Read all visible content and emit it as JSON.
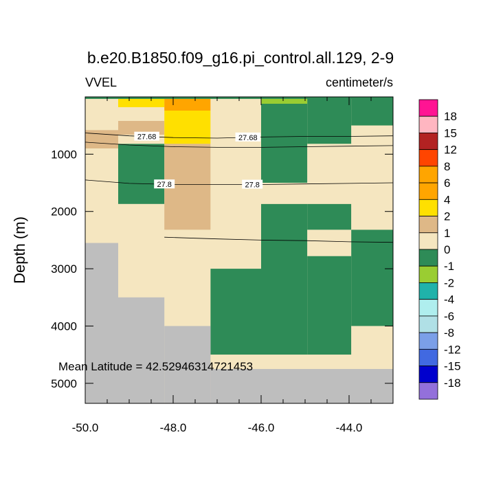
{
  "chart_data": {
    "type": "heatmap",
    "title": "b.e20.B1850.f09_g16.pi_control.all.129, 2-9",
    "variable_label": "VVEL",
    "units_label": "centimeter/s",
    "ylabel": "Depth (m)",
    "xlabel": "",
    "annotation": "Mean Latitude = 42.52946314721453",
    "xlim": [
      -50.0,
      -43.0
    ],
    "ylim": [
      5350,
      0
    ],
    "x_ticks": [
      -50.0,
      -48.0,
      -46.0,
      -44.0
    ],
    "x_tick_labels": [
      "-50.0",
      "-48.0",
      "-46.0",
      "-44.0"
    ],
    "y_ticks": [
      1000,
      2000,
      3000,
      4000,
      5000
    ],
    "y_tick_labels": [
      "1000",
      "2000",
      "3000",
      "4000",
      "5000"
    ],
    "land_color": "#bebebe",
    "colorbar": {
      "labels": [
        "18",
        "15",
        "12",
        "8",
        "6",
        "4",
        "2",
        "1",
        "0",
        "-1",
        "-2",
        "-4",
        "-6",
        "-8",
        "-12",
        "-15",
        "-18"
      ],
      "colors": [
        "#ff1493",
        "#ffb6c1",
        "#b22222",
        "#ff4500",
        "#ffa500",
        "#ffa500",
        "#ffe000",
        "#deb887",
        "#f5e6c0",
        "#2e8b57",
        "#9acd32",
        "#20b2aa",
        "#afeeee",
        "#b0e0e6",
        "#7b9fe8",
        "#4169e1",
        "#0000cd",
        "#9370db"
      ]
    },
    "cells": [
      {
        "x": [
          -50.0,
          -49.25
        ],
        "y": [
          0,
          580
        ],
        "category": "0"
      },
      {
        "x": [
          -50.0,
          -49.25
        ],
        "y": [
          580,
          900
        ],
        "category": "1"
      },
      {
        "x": [
          -50.0,
          -49.25
        ],
        "y": [
          900,
          2550
        ],
        "category": "0"
      },
      {
        "x": [
          -49.25,
          -48.2
        ],
        "y": [
          0,
          180
        ],
        "category": "2"
      },
      {
        "x": [
          -49.25,
          -48.2
        ],
        "y": [
          180,
          420
        ],
        "category": "0"
      },
      {
        "x": [
          -49.25,
          -48.2
        ],
        "y": [
          420,
          660
        ],
        "category": "1"
      },
      {
        "x": [
          -49.25,
          -48.2
        ],
        "y": [
          660,
          820
        ],
        "category": "0"
      },
      {
        "x": [
          -49.25,
          -48.2
        ],
        "y": [
          820,
          1870
        ],
        "category": "-1"
      },
      {
        "x": [
          -49.25,
          -48.2
        ],
        "y": [
          1870,
          3500
        ],
        "category": "0"
      },
      {
        "x": [
          -48.2,
          -47.15
        ],
        "y": [
          0,
          240
        ],
        "category": "4"
      },
      {
        "x": [
          -48.2,
          -47.15
        ],
        "y": [
          240,
          820
        ],
        "category": "2"
      },
      {
        "x": [
          -48.2,
          -47.15
        ],
        "y": [
          820,
          2320
        ],
        "category": "1"
      },
      {
        "x": [
          -48.2,
          -47.15
        ],
        "y": [
          2320,
          4000
        ],
        "category": "0"
      },
      {
        "x": [
          -47.15,
          -46.0
        ],
        "y": [
          0,
          3000
        ],
        "category": "0"
      },
      {
        "x": [
          -47.15,
          -46.0
        ],
        "y": [
          3000,
          4500
        ],
        "category": "-1"
      },
      {
        "x": [
          -47.15,
          -46.0
        ],
        "y": [
          4500,
          4750
        ],
        "category": "0"
      },
      {
        "x": [
          -46.0,
          -44.95
        ],
        "y": [
          0,
          120
        ],
        "category": "-2"
      },
      {
        "x": [
          -46.0,
          -44.95
        ],
        "y": [
          120,
          1500
        ],
        "category": "-1"
      },
      {
        "x": [
          -46.0,
          -44.95
        ],
        "y": [
          1500,
          1870
        ],
        "category": "0"
      },
      {
        "x": [
          -46.0,
          -44.95
        ],
        "y": [
          1870,
          4500
        ],
        "category": "-1"
      },
      {
        "x": [
          -46.0,
          -44.95
        ],
        "y": [
          4500,
          4750
        ],
        "category": "0"
      },
      {
        "x": [
          -44.95,
          -43.95
        ],
        "y": [
          0,
          820
        ],
        "category": "-1"
      },
      {
        "x": [
          -44.95,
          -43.95
        ],
        "y": [
          820,
          1870
        ],
        "category": "0"
      },
      {
        "x": [
          -44.95,
          -43.95
        ],
        "y": [
          1870,
          2320
        ],
        "category": "-1"
      },
      {
        "x": [
          -44.95,
          -43.95
        ],
        "y": [
          2320,
          2780
        ],
        "category": "0"
      },
      {
        "x": [
          -44.95,
          -43.95
        ],
        "y": [
          2780,
          4500
        ],
        "category": "-1"
      },
      {
        "x": [
          -44.95,
          -43.95
        ],
        "y": [
          4500,
          4750
        ],
        "category": "0"
      },
      {
        "x": [
          -43.95,
          -43.0
        ],
        "y": [
          0,
          500
        ],
        "category": "-1"
      },
      {
        "x": [
          -43.95,
          -43.0
        ],
        "y": [
          500,
          2320
        ],
        "category": "0"
      },
      {
        "x": [
          -43.95,
          -43.0
        ],
        "y": [
          2320,
          4000
        ],
        "category": "-1"
      },
      {
        "x": [
          -43.95,
          -43.0
        ],
        "y": [
          4000,
          4750
        ],
        "category": "0"
      }
    ],
    "surface_band": {
      "x": [
        -50.0,
        -43.0
      ],
      "y": [
        0,
        35
      ],
      "category": "-1"
    },
    "land_cells": [
      {
        "x": [
          -50.0,
          -49.25
        ],
        "y": [
          2550,
          5350
        ]
      },
      {
        "x": [
          -49.25,
          -48.2
        ],
        "y": [
          3500,
          5350
        ]
      },
      {
        "x": [
          -48.2,
          -47.15
        ],
        "y": [
          4000,
          5350
        ]
      },
      {
        "x": [
          -47.15,
          -43.0
        ],
        "y": [
          4750,
          5350
        ]
      }
    ],
    "contours": [
      {
        "level": "27.68",
        "points": [
          [
            -50.0,
            630
          ],
          [
            -49.0,
            680
          ],
          [
            -48.0,
            710
          ],
          [
            -47.0,
            720
          ],
          [
            -46.0,
            700
          ],
          [
            -45.0,
            690
          ],
          [
            -44.0,
            690
          ],
          [
            -43.0,
            680
          ]
        ],
        "label_x": [
          -48.6,
          -46.3
        ]
      },
      {
        "level": "",
        "points": [
          [
            -50.0,
            790
          ],
          [
            -49.0,
            840
          ],
          [
            -48.0,
            870
          ],
          [
            -47.0,
            880
          ],
          [
            -46.0,
            880
          ],
          [
            -45.0,
            870
          ],
          [
            -44.0,
            860
          ],
          [
            -43.0,
            850
          ]
        ],
        "label_x": []
      },
      {
        "level": "27.8",
        "points": [
          [
            -50.0,
            1450
          ],
          [
            -49.0,
            1510
          ],
          [
            -48.0,
            1530
          ],
          [
            -47.0,
            1530
          ],
          [
            -46.0,
            1530
          ],
          [
            -45.0,
            1520
          ],
          [
            -44.0,
            1510
          ],
          [
            -43.0,
            1500
          ]
        ],
        "label_x": [
          -48.2,
          -46.2
        ]
      },
      {
        "level": "",
        "points": [
          [
            -48.2,
            2450
          ],
          [
            -47.0,
            2480
          ],
          [
            -46.0,
            2500
          ],
          [
            -45.0,
            2510
          ],
          [
            -44.0,
            2530
          ],
          [
            -43.0,
            2540
          ]
        ],
        "label_x": []
      }
    ]
  }
}
